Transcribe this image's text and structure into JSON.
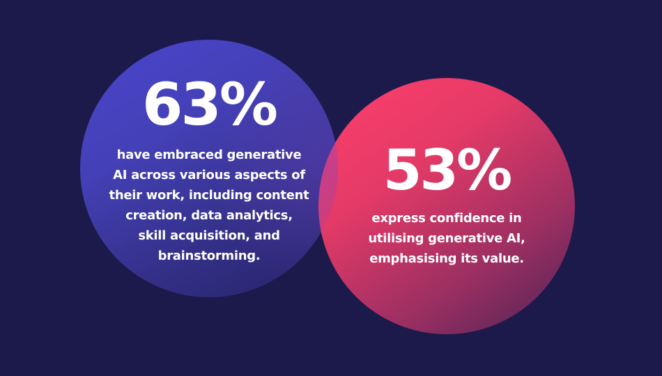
{
  "colors": {
    "background": "#1b1a4a",
    "blue_circle": "#4b45cf",
    "red_circle": "#ff3f6c",
    "text": "#ffffff"
  },
  "stats": [
    {
      "value": "63%",
      "lines": [
        "have embraced generative",
        "AI across various aspects of",
        "their work, including content",
        "creation, data analytics,",
        "skill acquisition, and",
        "brainstorming."
      ]
    },
    {
      "value": "53%",
      "lines": [
        "express confidence in",
        "utilising generative AI,",
        "emphasising its value."
      ]
    }
  ]
}
